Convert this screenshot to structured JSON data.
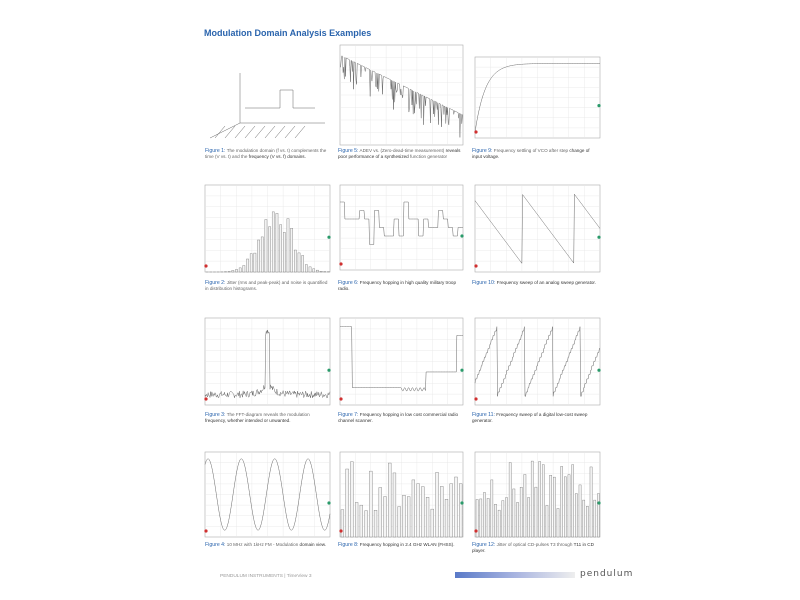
{
  "title": "Modulation Domain Analysis Examples",
  "figures": [
    {
      "id": "1",
      "label": "Figure 1:",
      "text": "The modulation domain (f vs. t) complements the time (V vs. t) and the",
      "bold": "frequency (V vs. f) domains."
    },
    {
      "id": "2",
      "label": "Figure 2:",
      "text": "Jitter (rms and peak-peak) and noise is quantified in distribution histograms.",
      "bold": ""
    },
    {
      "id": "3",
      "label": "Figure 3:",
      "text": "The FFT-diagram reveals the modulation",
      "bold": "frequency, whether intended or unwanted."
    },
    {
      "id": "4",
      "label": "Figure 4:",
      "text": "10 MHz with 1kHz FM - Modulation",
      "bold": "domain view."
    },
    {
      "id": "5",
      "label": "Figure 5:",
      "text": "ADEV vs. (Zero-dead-time measurement)",
      "bold": "reveals poor performance of a synthesized",
      "tail": "function generator"
    },
    {
      "id": "6",
      "label": "Figure 6:",
      "text": "",
      "bold": "Frequency hopping in high quality military troop radio."
    },
    {
      "id": "7",
      "label": "Figure 7:",
      "text": "",
      "bold": "Frequency hopping in low cost commercial radio channel scanner."
    },
    {
      "id": "8",
      "label": "Figure 8:",
      "text": "",
      "bold": "Frequency hopping in 2.4 GHz WLAN (FHSS)."
    },
    {
      "id": "9",
      "label": "Figure 9:",
      "text": "Frequency settling of VCO after step",
      "bold": "change of input voltage."
    },
    {
      "id": "10",
      "label": "Figure 10:",
      "text": "",
      "bold": "Frequency sweep of an analog sweep generator."
    },
    {
      "id": "11",
      "label": "Figure 11:",
      "text": "",
      "bold": "Frequency sweep of a digital low-cost sweep generator."
    },
    {
      "id": "12",
      "label": "Figure 12:",
      "text": "Jitter of optical CD-pulses T3 through",
      "bold": "T11 in CD player."
    }
  ],
  "footer": {
    "left": "PENDULUM INSTRUMENTS    | TimeView 3",
    "logo": "pendulum"
  },
  "colors": {
    "accent": "#2a64ad",
    "marker_start": "#d03030",
    "marker_end": "#2a9a6a"
  }
}
